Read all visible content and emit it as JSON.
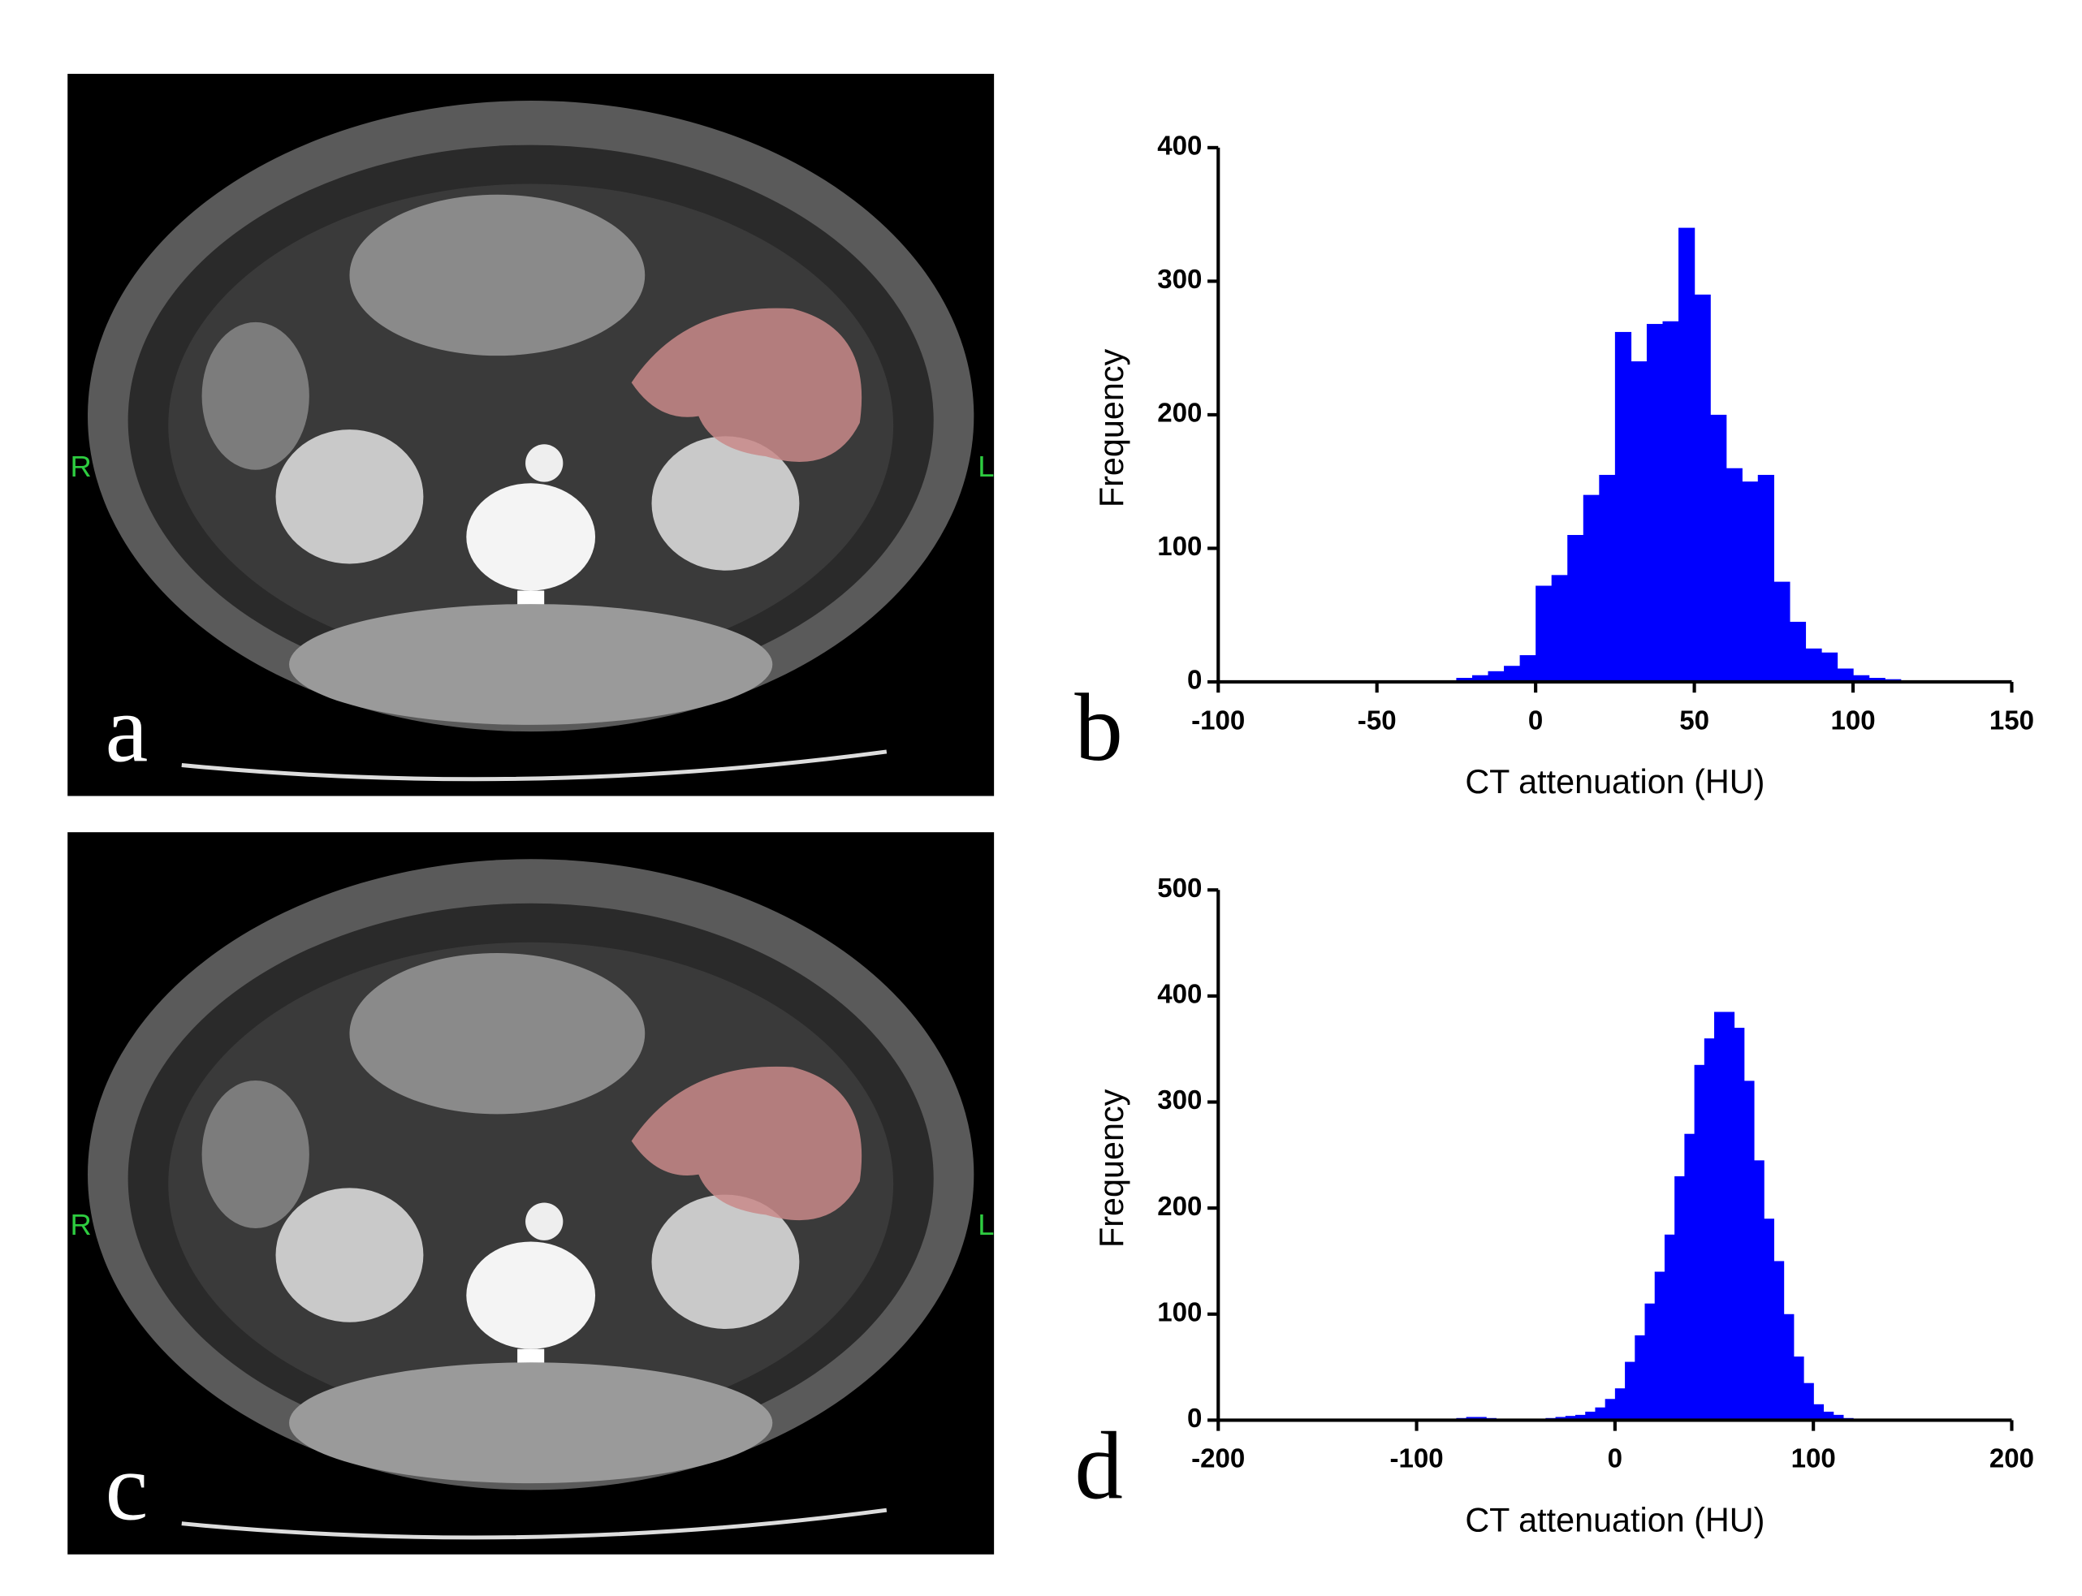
{
  "images": [
    {
      "label": "a",
      "left_marker": "R",
      "right_marker": "L"
    },
    {
      "label": "c",
      "left_marker": "R",
      "right_marker": "L"
    }
  ],
  "chart_data": [
    {
      "type": "histogram",
      "panel_label": "b",
      "x_label": "CT attenuation (HU)",
      "y_label": "Frequency",
      "color": "#0000ff",
      "bins": [
        -100,
        -95,
        -90,
        -85,
        -80,
        -75,
        -70,
        -65,
        -60,
        -55,
        -50,
        -45,
        -40,
        -35,
        -30,
        -25,
        -20,
        -15,
        -10,
        -5,
        0,
        5,
        10,
        15,
        20,
        25,
        30,
        35,
        40,
        45,
        50,
        55,
        60,
        65,
        70,
        75,
        80,
        85,
        90,
        95,
        100,
        105,
        110,
        115,
        120,
        125,
        130,
        135,
        140,
        145,
        150
      ],
      "values": [
        0,
        0,
        0,
        0,
        1,
        1,
        1,
        1,
        1,
        1,
        1,
        1,
        1,
        1,
        1,
        3,
        5,
        8,
        12,
        20,
        72,
        80,
        110,
        140,
        155,
        262,
        240,
        268,
        270,
        340,
        290,
        200,
        160,
        150,
        155,
        75,
        45,
        25,
        22,
        10,
        5,
        3,
        2,
        1,
        1,
        1,
        0,
        0,
        0,
        0
      ],
      "xlim": [
        -100,
        150
      ],
      "xticks": [
        -100,
        -50,
        0,
        50,
        100,
        150
      ],
      "ylim": [
        0,
        400
      ],
      "yticks": [
        0,
        100,
        200,
        300,
        400
      ]
    },
    {
      "type": "histogram",
      "panel_label": "d",
      "x_label": "CT attenuation (HU)",
      "y_label": "Frequency",
      "color": "#0000ff",
      "bins": [
        -150,
        -145,
        -140,
        -135,
        -130,
        -125,
        -120,
        -115,
        -110,
        -105,
        -100,
        -95,
        -90,
        -85,
        -80,
        -75,
        -70,
        -65,
        -60,
        -55,
        -50,
        -45,
        -40,
        -35,
        -30,
        -25,
        -20,
        -15,
        -10,
        -5,
        0,
        5,
        10,
        15,
        20,
        25,
        30,
        35,
        40,
        45,
        50,
        55,
        60,
        65,
        70,
        75,
        80,
        85,
        90,
        95,
        100,
        105,
        110,
        115,
        120,
        125,
        130
      ],
      "values": [
        1,
        1,
        1,
        1,
        1,
        1,
        1,
        1,
        1,
        1,
        1,
        1,
        1,
        1,
        2,
        3,
        3,
        2,
        1,
        1,
        1,
        1,
        1,
        2,
        3,
        4,
        5,
        8,
        12,
        20,
        30,
        55,
        80,
        110,
        140,
        175,
        230,
        270,
        335,
        360,
        385,
        385,
        370,
        320,
        245,
        190,
        150,
        100,
        60,
        35,
        15,
        8,
        5,
        2,
        1,
        1
      ],
      "xlim": [
        -200,
        200
      ],
      "xticks": [
        -200,
        -100,
        0,
        100,
        200
      ],
      "ylim": [
        0,
        500
      ],
      "yticks": [
        0,
        100,
        200,
        300,
        400,
        500
      ]
    }
  ]
}
